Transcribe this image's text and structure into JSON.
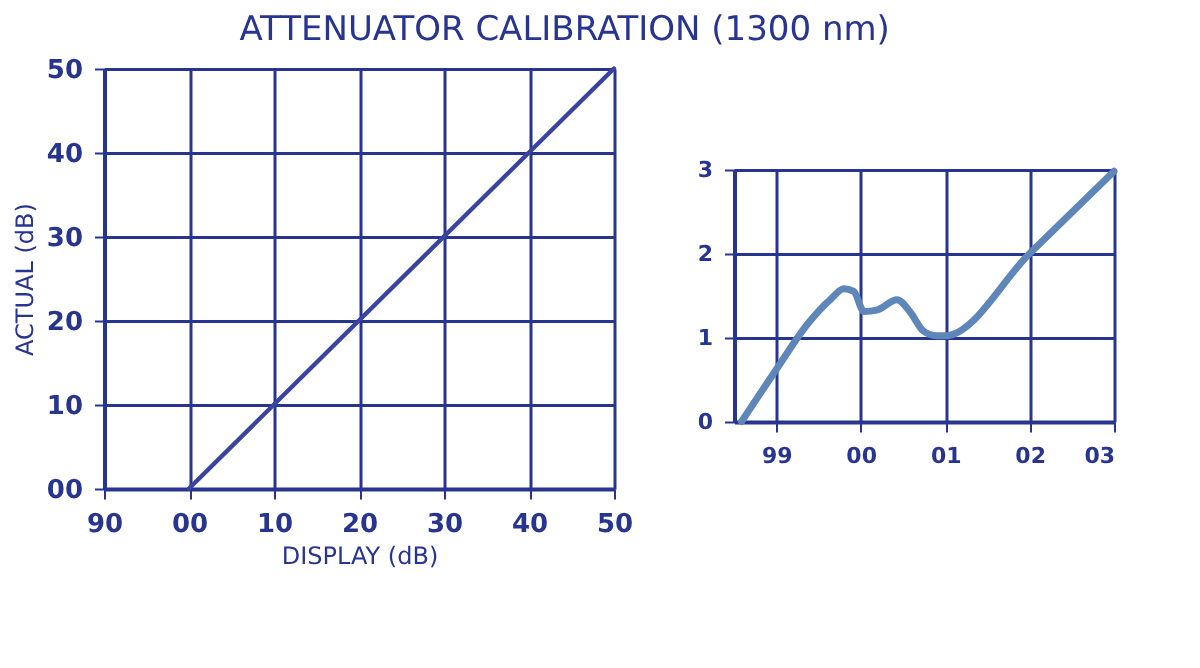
{
  "chart_data": [
    {
      "type": "line",
      "title": "ATTENUATOR CALIBRATION (1300 nm)",
      "xlabel": "DISPLAY (dB)",
      "ylabel": "ACTUAL (dB)",
      "categories": [
        "90",
        "00",
        "10",
        "20",
        "30",
        "40",
        "50"
      ],
      "series": [
        {
          "color": "#3a44a0",
          "x": [
            "00",
            "50"
          ],
          "values": [
            0,
            50
          ]
        }
      ],
      "ylim": [
        0,
        50
      ],
      "yticks": [
        {
          "value": 0,
          "label": "00"
        },
        10,
        20,
        30,
        40,
        50
      ],
      "grid": true,
      "marker": "none",
      "line_style": "solid"
    },
    {
      "type": "line",
      "series": [
        {
          "color": "#5f86b8",
          "x": [
            "1998-08-04",
            "1999-01-01",
            "1999-05-19",
            "1999-08-26",
            "1999-10-20",
            "1999-12-02",
            "2000-01-15",
            "2000-03-14",
            "2000-06-06",
            "2000-08-03",
            "2000-09-27",
            "2000-11-25",
            "2001-01-01",
            "2002-01-01",
            "2003-01-01"
          ],
          "values": [
            0,
            0.62,
            1.17,
            1.46,
            1.58,
            1.55,
            1.31,
            1.33,
            1.45,
            1.3,
            1.08,
            1.02,
            1.02,
            2,
            2.98
          ]
        }
      ],
      "xlim": [
        "1998-07-02",
        "2003-01-01"
      ],
      "xticks": [
        {
          "value": "1999",
          "label": "99"
        },
        {
          "value": "2000",
          "label": "00"
        },
        {
          "value": "2001",
          "label": "01"
        },
        {
          "value": "2002",
          "label": "02"
        },
        {
          "value": "2003",
          "label": "03"
        }
      ],
      "ylim": [
        0,
        3
      ],
      "yticks": [
        0,
        1,
        2,
        3
      ],
      "grid": true,
      "marker": "none",
      "line_style": "solid"
    }
  ]
}
